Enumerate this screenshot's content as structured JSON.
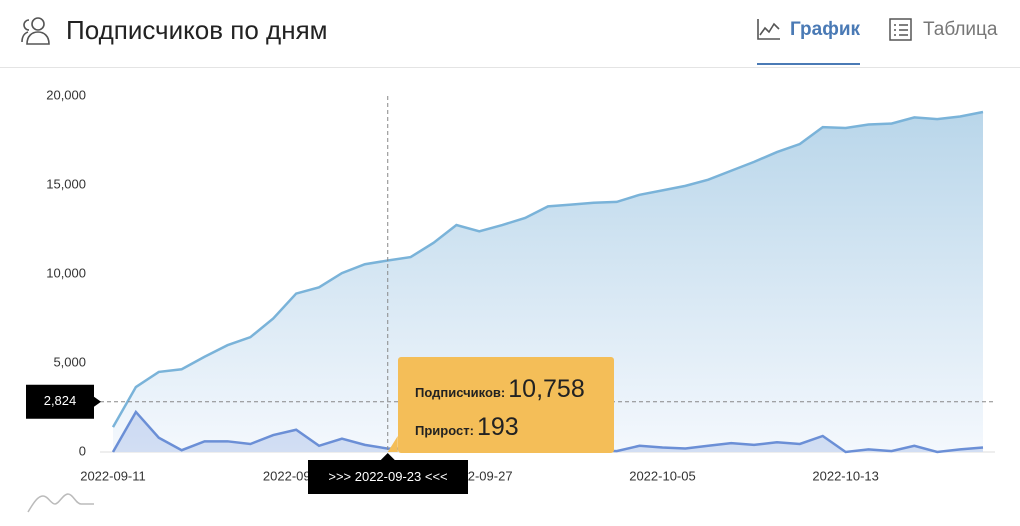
{
  "header": {
    "title": "Подписчиков по дням",
    "tabs": [
      "График",
      "Таблица"
    ]
  },
  "chart_data": {
    "type": "area",
    "x": [
      "2022-09-11",
      "2022-09-12",
      "2022-09-13",
      "2022-09-14",
      "2022-09-15",
      "2022-09-16",
      "2022-09-17",
      "2022-09-18",
      "2022-09-19",
      "2022-09-20",
      "2022-09-21",
      "2022-09-22",
      "2022-09-23",
      "2022-09-24",
      "2022-09-25",
      "2022-09-26",
      "2022-09-27",
      "2022-09-28",
      "2022-09-29",
      "2022-09-30",
      "2022-10-01",
      "2022-10-02",
      "2022-10-03",
      "2022-10-04",
      "2022-10-05",
      "2022-10-06",
      "2022-10-07",
      "2022-10-08",
      "2022-10-09",
      "2022-10-10",
      "2022-10-11",
      "2022-10-12",
      "2022-10-13",
      "2022-10-14",
      "2022-10-15",
      "2022-10-16",
      "2022-10-17",
      "2022-10-18",
      "2022-10-19"
    ],
    "series": [
      {
        "name": "Подписчиков",
        "color": "#7ab3d9",
        "values": [
          1400,
          3650,
          4500,
          4650,
          5350,
          6000,
          6450,
          7500,
          8900,
          9250,
          10050,
          10550,
          10758,
          10950,
          11750,
          12750,
          12400,
          12750,
          13150,
          13800,
          13900,
          14000,
          14050,
          14450,
          14700,
          14950,
          15300,
          15800,
          16300,
          16850,
          17300,
          18250,
          18200,
          18400,
          18450,
          18800,
          18700,
          18850,
          19100
        ]
      },
      {
        "name": "Прирост",
        "color": "#6b8fd6",
        "values": [
          0,
          2250,
          800,
          100,
          600,
          600,
          450,
          950,
          1250,
          350,
          750,
          400,
          193,
          200,
          800,
          1000,
          100,
          350,
          400,
          650,
          100,
          100,
          50,
          350,
          250,
          200,
          350,
          500,
          400,
          550,
          450,
          900,
          0,
          150,
          50,
          350,
          0,
          150,
          250
        ]
      }
    ],
    "ylim": [
      0,
      20000
    ],
    "yticks": [
      0,
      {
        "value": 5000,
        "label": "5,000"
      },
      {
        "value": 10000,
        "label": "10,000"
      },
      {
        "value": 15000,
        "label": "15,000"
      },
      {
        "value": 20000,
        "label": "20,000"
      }
    ],
    "xticks": [
      "2022-09-11",
      "2022-09-19",
      "2022-09-27",
      "2022-10-05",
      "2022-10-13"
    ],
    "crosshair_y": {
      "value": 2824,
      "label": "2,824"
    },
    "tooltip": {
      "index": 12,
      "date_label": ">>> 2022-09-23 <<<",
      "value_labels": [
        "10,758",
        "193"
      ]
    }
  }
}
